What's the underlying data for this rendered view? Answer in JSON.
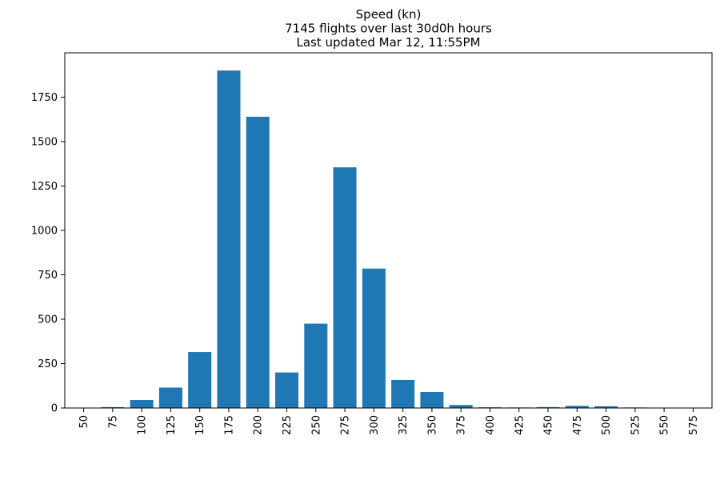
{
  "chart_data": {
    "type": "bar",
    "title_lines": [
      "Speed (kn)",
      "7145 flights over last 30d0h hours",
      "Last updated Mar 12, 11:55PM"
    ],
    "categories": [
      "50",
      "75",
      "100",
      "125",
      "150",
      "175",
      "200",
      "225",
      "250",
      "275",
      "300",
      "325",
      "350",
      "375",
      "400",
      "425",
      "450",
      "475",
      "500",
      "525",
      "550",
      "575"
    ],
    "values": [
      0,
      5,
      45,
      115,
      315,
      1900,
      1640,
      200,
      475,
      1355,
      785,
      158,
      90,
      17,
      4,
      3,
      5,
      12,
      10,
      3,
      0,
      0
    ],
    "yticks": [
      0,
      250,
      500,
      750,
      1000,
      1250,
      1500,
      1750
    ],
    "ylim": [
      0,
      2000
    ],
    "grid": false,
    "bar_color": "#1f77b4"
  }
}
